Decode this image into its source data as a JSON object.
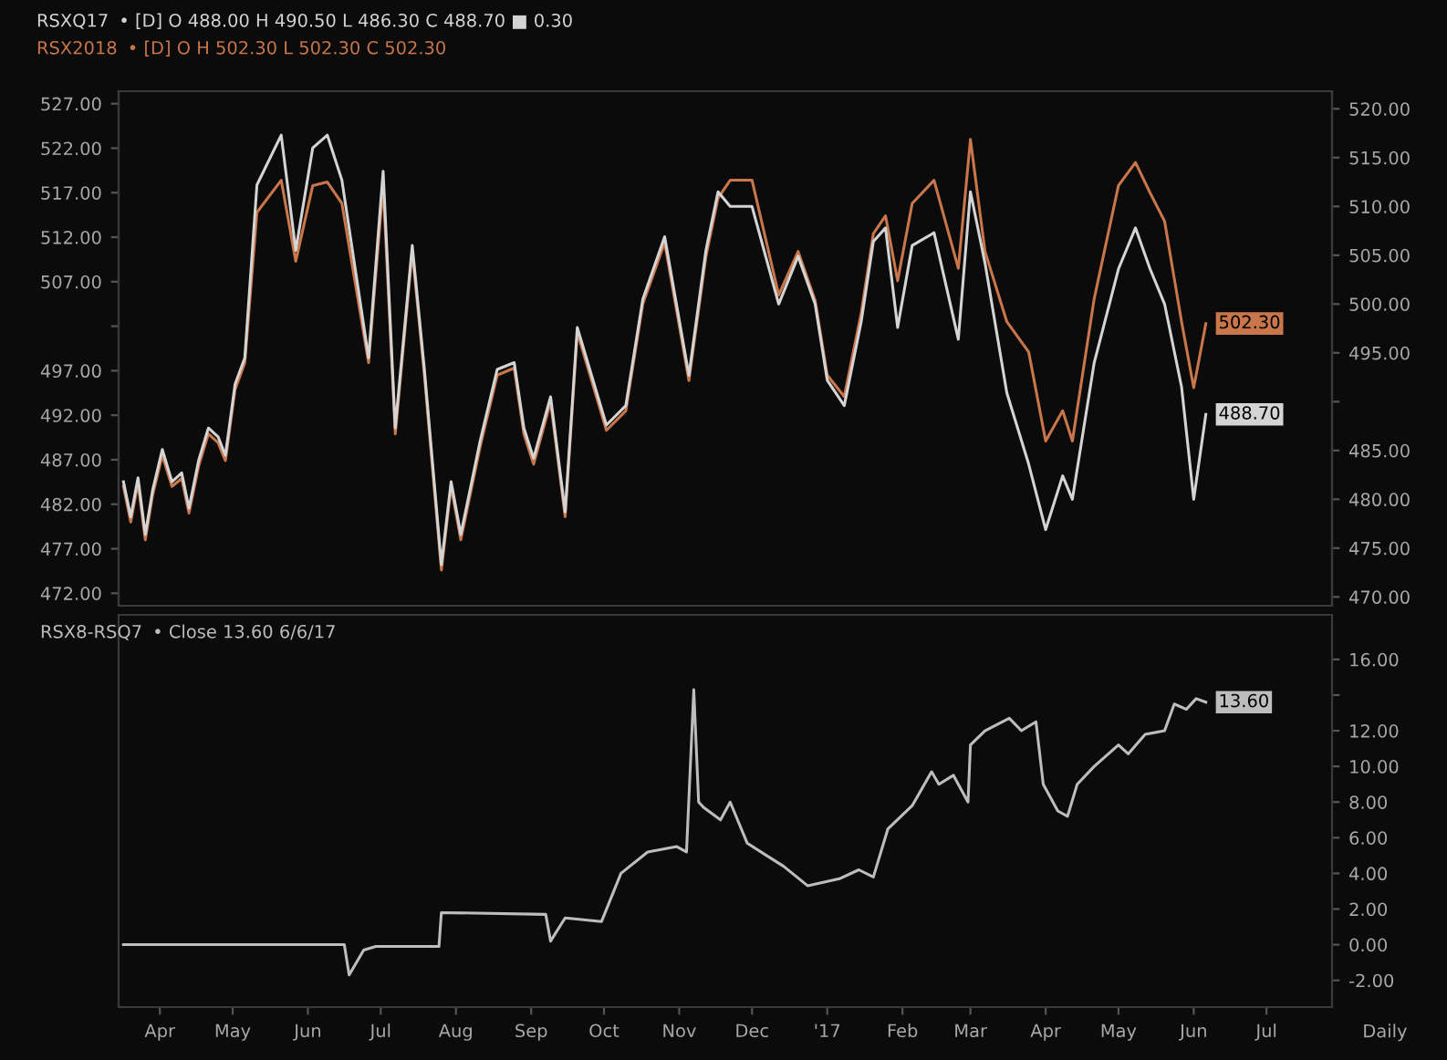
{
  "chart_data": [
    {
      "type": "line",
      "x": [
        "2016-03-17",
        "2016-03-20",
        "2016-03-23",
        "2016-03-26",
        "2016-03-29",
        "2016-04-02",
        "2016-04-06",
        "2016-04-10",
        "2016-04-13",
        "2016-04-17",
        "2016-04-21",
        "2016-04-25",
        "2016-04-28",
        "2016-05-02",
        "2016-05-06",
        "2016-05-11",
        "2016-05-21",
        "2016-05-27",
        "2016-06-03",
        "2016-06-09",
        "2016-06-15",
        "2016-06-26",
        "2016-07-02",
        "2016-07-07",
        "2016-07-14",
        "2016-07-19",
        "2016-07-26",
        "2016-07-30",
        "2016-08-03",
        "2016-08-11",
        "2016-08-18",
        "2016-08-25",
        "2016-08-29",
        "2016-09-02",
        "2016-09-09",
        "2016-09-15",
        "2016-09-20",
        "2016-10-02",
        "2016-10-10",
        "2016-10-17",
        "2016-10-26",
        "2016-11-05",
        "2016-11-12",
        "2016-11-17",
        "2016-11-22",
        "2016-12-01",
        "2016-12-12",
        "2016-12-20",
        "2016-12-27",
        "2017-01-01",
        "2017-01-08",
        "2017-01-15",
        "2017-01-20",
        "2017-01-25",
        "2017-01-30",
        "2017-02-05",
        "2017-02-14",
        "2017-02-24",
        "2017-03-01",
        "2017-03-07",
        "2017-03-16",
        "2017-03-25",
        "2017-04-01",
        "2017-04-08",
        "2017-04-12",
        "2017-04-21",
        "2017-05-01",
        "2017-05-08",
        "2017-05-14",
        "2017-05-20",
        "2017-05-27",
        "2017-06-01",
        "2017-06-06"
      ],
      "series": [
        {
          "name": "RSXQ17",
          "color": "#d4d4d4",
          "axis": "y2",
          "values": [
            481.8,
            478.2,
            482.2,
            476.4,
            480.9,
            485.1,
            481.8,
            482.7,
            479.1,
            484.0,
            487.3,
            486.4,
            484.5,
            491.8,
            494.5,
            512.2,
            517.3,
            505.5,
            516.0,
            517.3,
            512.7,
            494.5,
            513.6,
            487.3,
            506.0,
            493.3,
            473.3,
            481.8,
            476.4,
            486.0,
            493.3,
            494.0,
            487.3,
            484.2,
            490.5,
            478.7,
            497.6,
            487.6,
            489.6,
            500.5,
            506.9,
            492.7,
            505.5,
            511.5,
            510.0,
            510.0,
            500.0,
            504.9,
            500.0,
            492.2,
            489.6,
            498.2,
            506.4,
            507.8,
            497.6,
            506.0,
            507.3,
            496.4,
            511.5,
            504.2,
            490.9,
            483.6,
            476.9,
            482.4,
            480.0,
            494.0,
            503.6,
            507.8,
            503.6,
            500.0,
            491.5,
            480.0,
            488.7
          ],
          "value_labels": [
            null,
            null,
            null,
            null,
            null,
            null,
            null,
            null,
            null,
            null,
            null,
            null,
            null,
            null,
            null,
            null,
            null,
            null,
            null,
            null,
            null,
            null,
            null,
            null,
            null,
            null,
            null,
            null,
            null,
            null,
            null,
            null,
            null,
            null,
            null,
            null,
            null,
            null,
            null,
            null,
            null,
            null,
            null,
            null,
            null,
            null,
            null,
            null,
            null,
            null,
            null,
            null,
            null,
            null,
            null,
            null,
            null,
            null,
            null,
            null,
            null,
            null,
            null,
            null,
            null,
            null,
            null,
            null,
            null,
            null,
            null,
            null,
            "488.70"
          ]
        },
        {
          "name": "RSX2018",
          "color": "#c8764a",
          "axis": "y",
          "values": [
            484.0,
            480.0,
            484.4,
            478.0,
            483.0,
            487.5,
            484.0,
            484.9,
            481.0,
            486.3,
            489.9,
            488.9,
            486.9,
            494.9,
            497.9,
            514.8,
            518.4,
            509.3,
            517.8,
            518.2,
            515.8,
            497.9,
            517.8,
            489.9,
            510.4,
            496.5,
            474.6,
            484.0,
            478.0,
            488.5,
            496.5,
            497.3,
            489.9,
            486.5,
            493.5,
            480.6,
            501.3,
            490.3,
            492.5,
            504.5,
            511.4,
            495.9,
            509.8,
            516.4,
            518.4,
            518.4,
            505.5,
            510.4,
            504.9,
            496.5,
            494.1,
            503.5,
            512.4,
            514.4,
            507.1,
            515.8,
            518.4,
            508.5,
            523.0,
            510.4,
            502.5,
            499.1,
            489.1,
            492.5,
            489.1,
            505.1,
            517.8,
            520.4,
            517.0,
            513.8,
            502.5,
            495.1,
            502.3
          ],
          "value_labels": [
            null,
            null,
            null,
            null,
            null,
            null,
            null,
            null,
            null,
            null,
            null,
            null,
            null,
            null,
            null,
            null,
            null,
            null,
            null,
            null,
            null,
            null,
            null,
            null,
            null,
            null,
            null,
            null,
            null,
            null,
            null,
            null,
            null,
            null,
            null,
            null,
            null,
            null,
            null,
            null,
            null,
            null,
            null,
            null,
            null,
            null,
            null,
            null,
            null,
            null,
            null,
            null,
            null,
            null,
            null,
            null,
            null,
            null,
            null,
            null,
            null,
            null,
            null,
            null,
            null,
            null,
            null,
            null,
            null,
            null,
            null,
            null,
            "502.30"
          ]
        }
      ],
      "annotations": [
        "• [D] O 488.00 H 490.50 L 486.30 C 488.70 ■ 0.30",
        "• [D] O H 502.30 L 502.30 C 502.30"
      ],
      "xlim": [
        "2016-03-15",
        "2017-07-28"
      ],
      "ylim": [
        470.6,
        528.4
      ],
      "yticks": [
        {
          "value": 527,
          "label": "527.00"
        },
        {
          "value": 522,
          "label": "522.00"
        },
        {
          "value": 517,
          "label": "517.00"
        },
        {
          "value": 512,
          "label": "512.00"
        },
        {
          "value": 507,
          "label": "507.00"
        },
        {
          "value": 502,
          "label": null
        },
        {
          "value": 497,
          "label": "497.00"
        },
        {
          "value": 492,
          "label": "492.00"
        },
        {
          "value": 487,
          "label": "487.00"
        },
        {
          "value": 482,
          "label": "482.00"
        },
        {
          "value": 477,
          "label": "477.00"
        },
        {
          "value": 472,
          "label": "472.00"
        }
      ],
      "y2lim": [
        469.1,
        521.8
      ],
      "y2ticks": [
        {
          "value": 520,
          "label": "520.00"
        },
        {
          "value": 515,
          "label": "515.00"
        },
        {
          "value": 510,
          "label": "510.00"
        },
        {
          "value": 505,
          "label": "505.00"
        },
        {
          "value": 500,
          "label": "500.00"
        },
        {
          "value": 495,
          "label": "495.00"
        },
        {
          "value": 490,
          "label": null
        },
        {
          "value": 485,
          "label": "485.00"
        },
        {
          "value": 480,
          "label": "480.00"
        },
        {
          "value": 475,
          "label": "475.00"
        },
        {
          "value": 470,
          "label": "470.00"
        }
      ],
      "tick_labels": "y"
    },
    {
      "type": "line",
      "x": [
        "2016-03-17",
        "2016-06-16",
        "2016-06-18",
        "2016-06-24",
        "2016-06-29",
        "2016-07-25",
        "2016-07-26",
        "2016-09-07",
        "2016-09-09",
        "2016-09-15",
        "2016-09-30",
        "2016-10-08",
        "2016-10-19",
        "2016-10-31",
        "2016-11-04",
        "2016-11-07",
        "2016-11-09",
        "2016-11-11",
        "2016-11-18",
        "2016-11-22",
        "2016-11-29",
        "2016-12-07",
        "2016-12-14",
        "2016-12-24",
        "2017-01-06",
        "2017-01-14",
        "2017-01-20",
        "2017-01-26",
        "2017-02-05",
        "2017-02-13",
        "2017-02-16",
        "2017-02-22",
        "2017-02-28",
        "2017-03-01",
        "2017-03-07",
        "2017-03-17",
        "2017-03-22",
        "2017-03-28",
        "2017-03-31",
        "2017-04-06",
        "2017-04-10",
        "2017-04-14",
        "2017-04-21",
        "2017-05-01",
        "2017-05-05",
        "2017-05-12",
        "2017-05-20",
        "2017-05-24",
        "2017-05-29",
        "2017-06-02",
        "2017-06-06"
      ],
      "series": [
        {
          "name": "RSX8-RSQ7",
          "color": "#bdbdbd",
          "values": [
            0.0,
            0.0,
            -1.7,
            -0.3,
            -0.1,
            -0.1,
            1.8,
            1.7,
            0.2,
            1.5,
            1.3,
            4.0,
            5.2,
            5.5,
            5.2,
            14.3,
            8.0,
            7.7,
            7.0,
            8.0,
            5.7,
            5.0,
            4.4,
            3.3,
            3.7,
            4.2,
            3.8,
            6.5,
            7.8,
            9.7,
            9.0,
            9.5,
            8.0,
            11.2,
            12.0,
            12.7,
            12.0,
            12.5,
            9.0,
            7.5,
            7.2,
            9.0,
            10.0,
            11.2,
            10.7,
            11.8,
            12.0,
            13.5,
            13.2,
            13.8,
            13.6
          ],
          "value_labels": [
            null,
            null,
            null,
            null,
            null,
            null,
            null,
            null,
            null,
            null,
            null,
            null,
            null,
            null,
            null,
            null,
            null,
            null,
            null,
            null,
            null,
            null,
            null,
            null,
            null,
            null,
            null,
            null,
            null,
            null,
            null,
            null,
            null,
            null,
            null,
            null,
            null,
            null,
            null,
            null,
            null,
            null,
            null,
            null,
            null,
            null,
            null,
            null,
            null,
            null,
            "13.60"
          ]
        }
      ],
      "annotations": [
        "• Close 13.60 6/6/17",
        "Daily"
      ],
      "xlim": [
        "2016-03-15",
        "2017-07-28"
      ],
      "xticks": [
        {
          "value": "2016-04-01",
          "label": "Apr"
        },
        {
          "value": "2016-05-01",
          "label": "May"
        },
        {
          "value": "2016-06-01",
          "label": "Jun"
        },
        {
          "value": "2016-07-01",
          "label": "Jul"
        },
        {
          "value": "2016-08-01",
          "label": "Aug"
        },
        {
          "value": "2016-09-01",
          "label": "Sep"
        },
        {
          "value": "2016-10-01",
          "label": "Oct"
        },
        {
          "value": "2016-11-01",
          "label": "Nov"
        },
        {
          "value": "2016-12-01",
          "label": "Dec"
        },
        {
          "value": "2017-01-01",
          "label": "'17"
        },
        {
          "value": "2017-02-01",
          "label": "Feb"
        },
        {
          "value": "2017-03-01",
          "label": "Mar"
        },
        {
          "value": "2017-04-01",
          "label": "Apr"
        },
        {
          "value": "2017-05-01",
          "label": "May"
        },
        {
          "value": "2017-06-01",
          "label": "Jun"
        },
        {
          "value": "2017-07-01",
          "label": "Jul"
        }
      ],
      "ylim": [
        -3.5,
        18.5
      ],
      "yticks": [
        {
          "value": 16,
          "label": "16.00"
        },
        {
          "value": 14,
          "label": null
        },
        {
          "value": 12,
          "label": "12.00"
        },
        {
          "value": 10,
          "label": "10.00"
        },
        {
          "value": 8,
          "label": "8.00"
        },
        {
          "value": 6,
          "label": "6.00"
        },
        {
          "value": 4,
          "label": "4.00"
        },
        {
          "value": 2,
          "label": "2.00"
        },
        {
          "value": 0,
          "label": "0.00"
        },
        {
          "value": -2,
          "label": "-2.00"
        }
      ]
    }
  ]
}
